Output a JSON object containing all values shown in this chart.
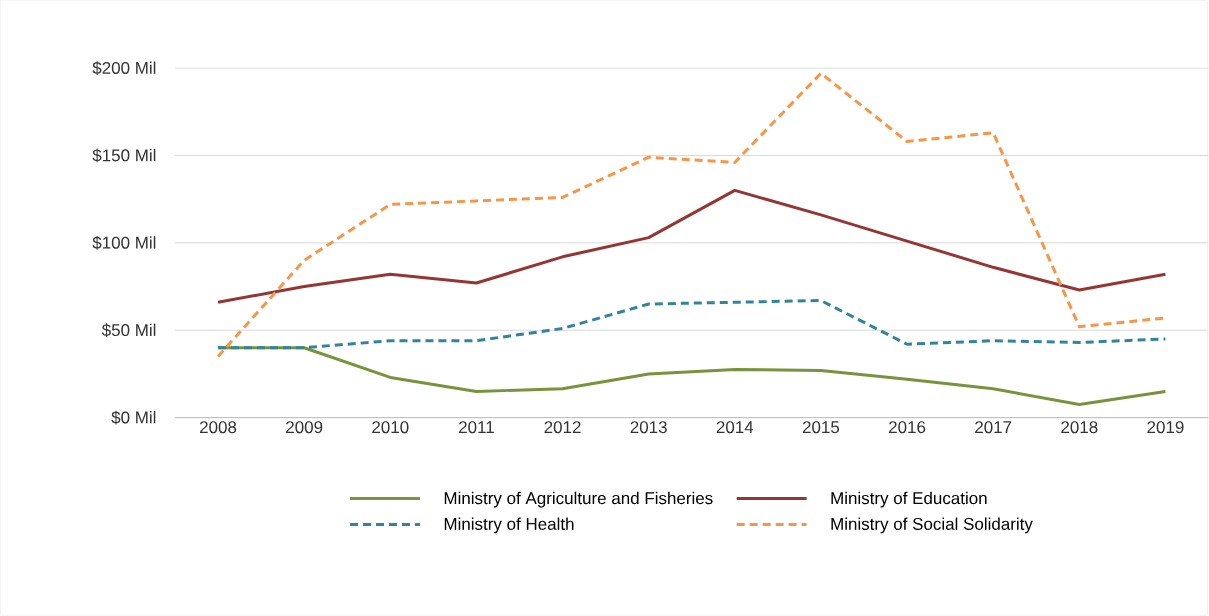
{
  "chart_data": {
    "type": "line",
    "categories": [
      "2008",
      "2009",
      "2010",
      "2011",
      "2012",
      "2013",
      "2014",
      "2015",
      "2016",
      "2017",
      "2018",
      "2019"
    ],
    "series": [
      {
        "name": "Ministry of Agriculture and Fisheries",
        "color": "#77933c",
        "line_style": "solid",
        "values": [
          40,
          40,
          23,
          15,
          16.5,
          25,
          27.5,
          27,
          22,
          16.5,
          7.5,
          15
        ]
      },
      {
        "name": "Ministry of Education",
        "color": "#943634",
        "line_style": "solid",
        "values": [
          66,
          75,
          82,
          77,
          92,
          103,
          130,
          116,
          101,
          86,
          73,
          82
        ]
      },
      {
        "name": "Ministry of Health",
        "color": "#31849b",
        "line_style": "dashed",
        "values": [
          40,
          40,
          44,
          44,
          51,
          65,
          66,
          67,
          42,
          44,
          43,
          45
        ]
      },
      {
        "name": "Ministry of Social Solidarity",
        "color": "#f79646",
        "line_style": "dashed",
        "values": [
          35,
          90,
          122,
          124,
          126,
          149,
          146,
          197,
          158,
          163,
          52,
          57
        ]
      }
    ],
    "ylim": [
      0,
      200
    ],
    "yticks": [
      {
        "value": 0,
        "label": "$0 Mil"
      },
      {
        "value": 50,
        "label": "$50 Mil"
      },
      {
        "value": 100,
        "label": "$100 Mil"
      },
      {
        "value": 150,
        "label": "$150 Mil"
      },
      {
        "value": 200,
        "label": "$200 Mil"
      }
    ],
    "grid": "y",
    "legend": "bottom"
  }
}
